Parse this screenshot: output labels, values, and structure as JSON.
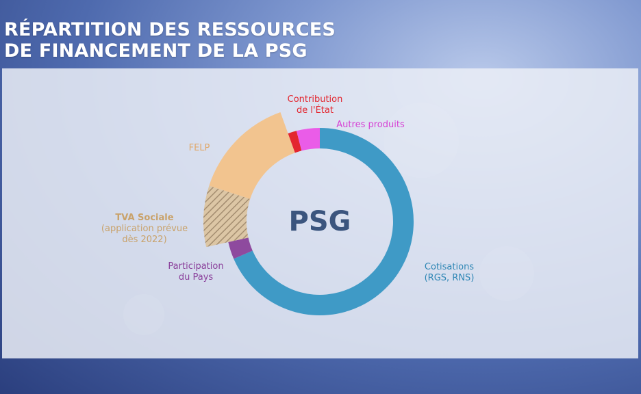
{
  "title_lines": [
    "RÉPARTITION DES RESSOURCES",
    "DE FINANCEMENT DE LA PSG"
  ],
  "chart_data": {
    "type": "pie",
    "title": "RÉPARTITION DES RESSOURCES DE FINANCEMENT DE LA PSG",
    "center_label": "PSG",
    "start_angle_deg": 0,
    "slices": [
      {
        "key": "cotisations",
        "label_lines": [
          "Cotisations",
          "(RGS, RNS)"
        ],
        "value": 68.5,
        "color": "#3f9ac6",
        "label_color": "#2e86b5",
        "bold": false,
        "hatched": false
      },
      {
        "key": "participation",
        "label_lines": [
          "Participation",
          "du Pays"
        ],
        "value": 3.0,
        "color": "#8e4a9e",
        "label_color": "#8a3f9a",
        "bold": false,
        "hatched": false
      },
      {
        "key": "tva",
        "label_lines": [
          "TVA Sociale",
          "(application prévue",
          "dès 2022)"
        ],
        "value": 8.5,
        "color": "#d9bd92",
        "label_color": "#c9a26a",
        "bold_first": true,
        "hatched": true,
        "exploded": true
      },
      {
        "key": "felp",
        "label_lines": [
          "FELP"
        ],
        "value": 14.5,
        "color": "#f2c48f",
        "label_color": "#e0a86a",
        "bold": false,
        "hatched": false,
        "exploded": true
      },
      {
        "key": "etat",
        "label_lines": [
          "Contribution",
          "de l'État"
        ],
        "value": 1.5,
        "color": "#e3262f",
        "label_color": "#e3262f",
        "bold": false,
        "hatched": false
      },
      {
        "key": "autres",
        "label_lines": [
          "Autres produits"
        ],
        "value": 4.0,
        "color": "#ea5ce8",
        "label_color": "#d640d4",
        "bold": false,
        "hatched": false
      }
    ],
    "center_color": "#3b557e",
    "legend": "labels-around-slices"
  }
}
